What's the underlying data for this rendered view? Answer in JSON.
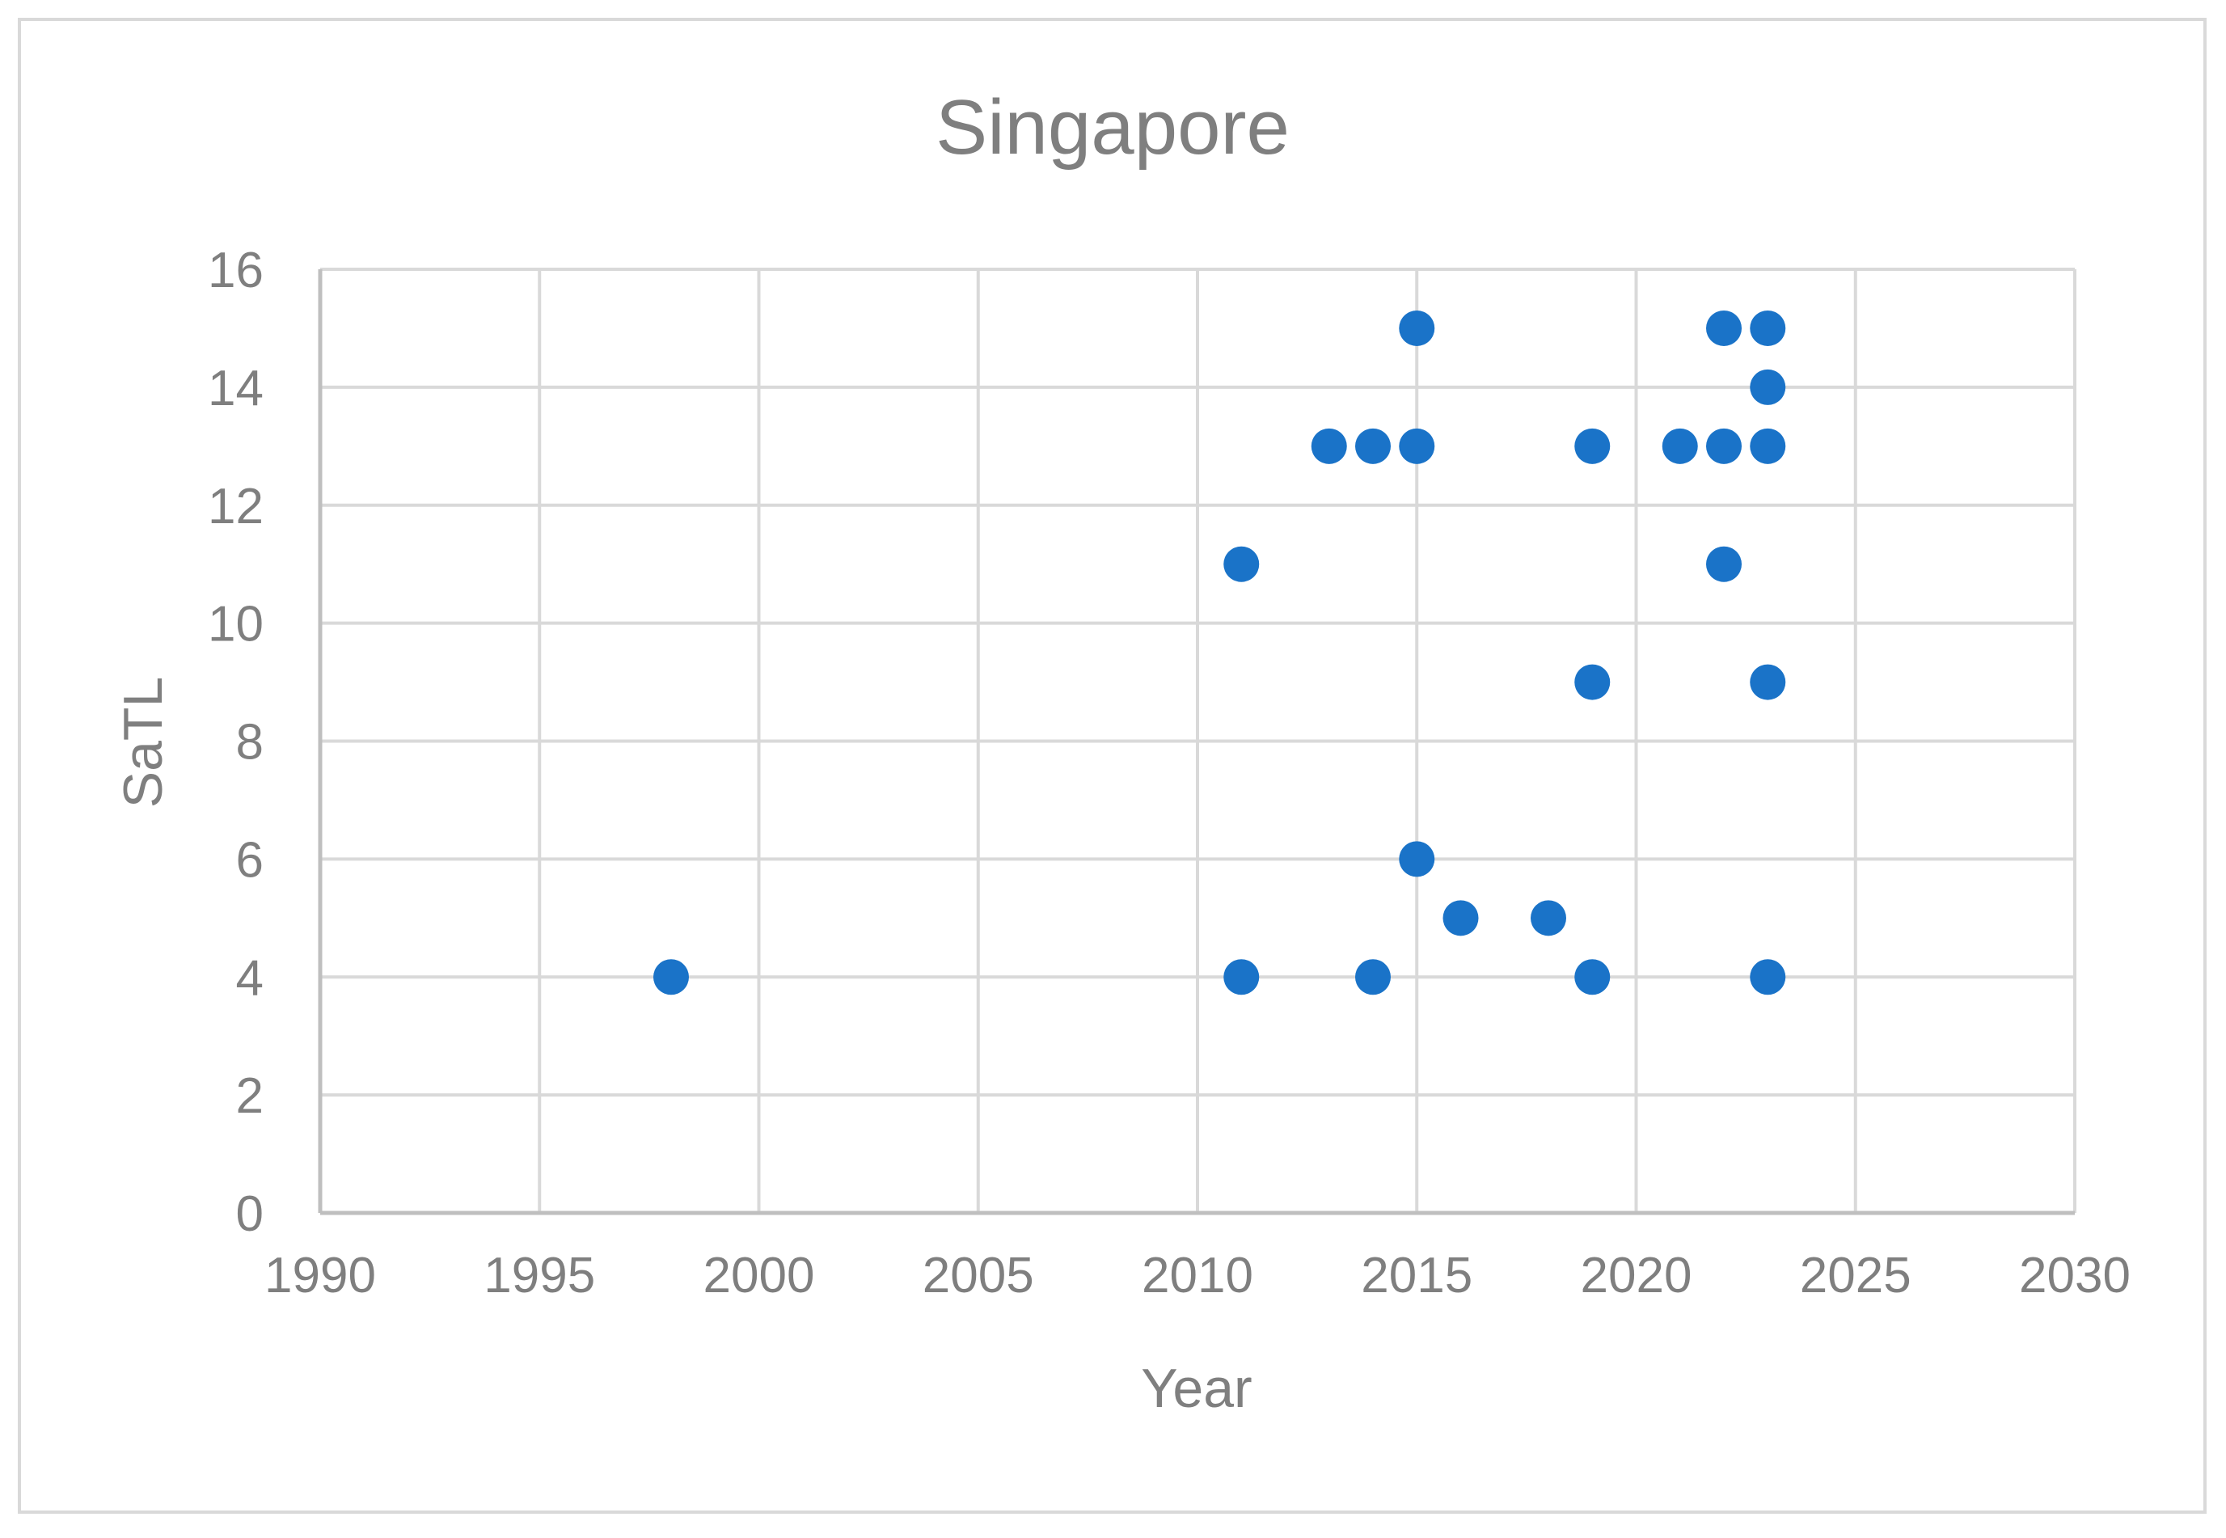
{
  "chart_data": {
    "type": "scatter",
    "title": "Singapore",
    "xlabel": "Year",
    "ylabel": "SaTL",
    "xlim": [
      1990,
      2030
    ],
    "ylim": [
      0,
      16
    ],
    "xticks": [
      "1990",
      "1995",
      "2000",
      "2005",
      "2010",
      "2015",
      "2020",
      "2025",
      "2030"
    ],
    "yticks": [
      "0",
      "2",
      "4",
      "6",
      "8",
      "10",
      "12",
      "14",
      "16"
    ],
    "grid": true,
    "legend": "none",
    "marker_color": "#1a73c8",
    "series": [
      {
        "points": [
          {
            "x": 1998,
            "y": 4
          },
          {
            "x": 2011,
            "y": 11
          },
          {
            "x": 2011,
            "y": 4
          },
          {
            "x": 2013,
            "y": 13
          },
          {
            "x": 2014,
            "y": 13
          },
          {
            "x": 2014,
            "y": 4
          },
          {
            "x": 2015,
            "y": 15
          },
          {
            "x": 2015,
            "y": 13
          },
          {
            "x": 2015,
            "y": 6
          },
          {
            "x": 2016,
            "y": 5
          },
          {
            "x": 2018,
            "y": 5
          },
          {
            "x": 2019,
            "y": 13
          },
          {
            "x": 2019,
            "y": 9
          },
          {
            "x": 2019,
            "y": 4
          },
          {
            "x": 2021,
            "y": 13
          },
          {
            "x": 2022,
            "y": 15
          },
          {
            "x": 2022,
            "y": 13
          },
          {
            "x": 2022,
            "y": 11
          },
          {
            "x": 2023,
            "y": 15
          },
          {
            "x": 2023,
            "y": 14
          },
          {
            "x": 2023,
            "y": 13
          },
          {
            "x": 2023,
            "y": 9
          },
          {
            "x": 2023,
            "y": 4
          }
        ]
      }
    ]
  }
}
